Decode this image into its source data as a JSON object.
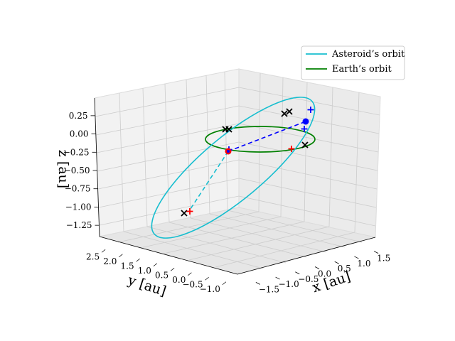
{
  "chart_data": {
    "type": "line3d",
    "axes": {
      "x": {
        "label": "x [au]",
        "ticks": [
          "−1.5",
          "−1.0",
          "−0.5",
          "0.0",
          "0.5",
          "1.0",
          "1.5"
        ]
      },
      "y": {
        "label": "y [au]",
        "ticks": [
          "2.5",
          "2.0",
          "1.5",
          "1.0",
          "0.5",
          "0.0",
          "−0.5",
          "−1.0"
        ]
      },
      "z": {
        "label": "z [au]",
        "ticks": [
          "0.25",
          "0.00",
          "−0.25",
          "−0.50",
          "−0.75",
          "−1.00",
          "−1.25"
        ]
      }
    },
    "legend": {
      "placement": "top-right",
      "entries": [
        {
          "name": "Asteroid’s orbit",
          "color": "#17becf"
        },
        {
          "name": "Earth’s orbit",
          "color": "#008000"
        }
      ]
    },
    "series": [
      {
        "name": "Asteroid’s orbit",
        "kind": "ellipse",
        "color": "#17becf"
      },
      {
        "name": "Earth’s orbit",
        "kind": "ellipse",
        "color": "#008000"
      }
    ],
    "markers": {
      "colors": {
        "black_x": "#000000",
        "red_plus": "#ff0000",
        "blue_plus": "#0000ff",
        "blue_dot": "#0000ff",
        "red_dot": "#ff0000"
      }
    },
    "grid": true
  }
}
